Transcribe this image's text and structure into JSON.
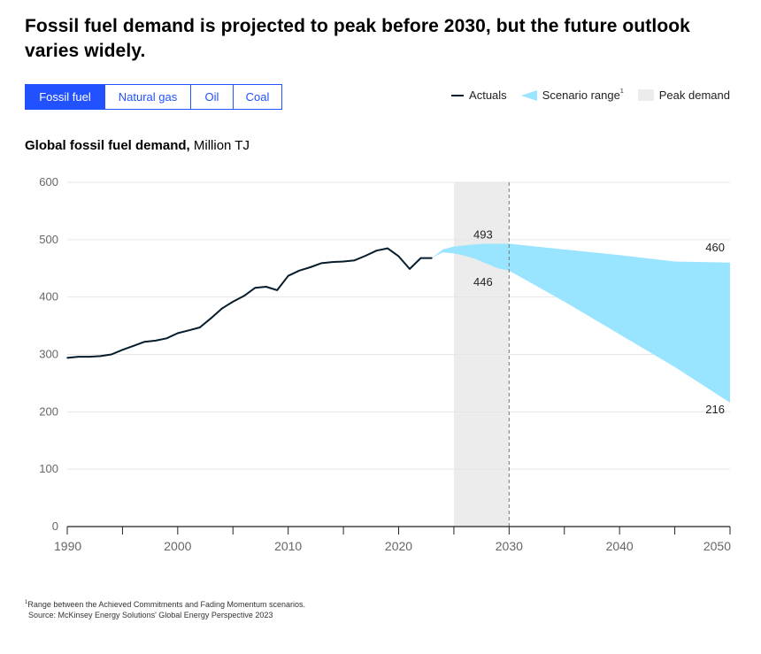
{
  "title": "Fossil fuel demand is projected to peak before 2030, but the future outlook varies widely.",
  "tabs": [
    {
      "label": "Fossil fuel",
      "active": true
    },
    {
      "label": "Natural gas",
      "active": false
    },
    {
      "label": "Oil",
      "active": false
    },
    {
      "label": "Coal",
      "active": false
    }
  ],
  "legend": {
    "actuals": "Actuals",
    "scenario": "Scenario range",
    "scenario_sup": "1",
    "peak": "Peak demand"
  },
  "chart_heading": {
    "bold": "Global fossil fuel demand,",
    "unit": " Million TJ"
  },
  "colors": {
    "actuals": "#051c2c",
    "scenario": "#99e4ff",
    "peak_band": "#ececec",
    "tab_accent": "#2251ff",
    "grid": "#e6e6e6",
    "axis_text": "#666666"
  },
  "chart_data": {
    "type": "line",
    "xlim": [
      1990,
      2050
    ],
    "ylim": [
      0,
      600
    ],
    "y_ticks": [
      0,
      100,
      200,
      300,
      400,
      500,
      600
    ],
    "x_ticks": [
      1990,
      2000,
      2010,
      2020,
      2030,
      2040,
      2050
    ],
    "grid": "horizontal",
    "actuals": {
      "name": "Actuals",
      "x": [
        1990,
        1991,
        1992,
        1993,
        1994,
        1995,
        1996,
        1997,
        1998,
        1999,
        2000,
        2001,
        2002,
        2003,
        2004,
        2005,
        2006,
        2007,
        2008,
        2009,
        2010,
        2011,
        2012,
        2013,
        2014,
        2015,
        2016,
        2017,
        2018,
        2019,
        2020,
        2021,
        2022,
        2023
      ],
      "y": [
        294,
        296,
        296,
        297,
        300,
        308,
        315,
        322,
        324,
        328,
        337,
        342,
        347,
        363,
        380,
        392,
        402,
        416,
        418,
        412,
        437,
        446,
        452,
        459,
        461,
        462,
        464,
        472,
        481,
        485,
        471,
        449,
        468,
        468
      ]
    },
    "scenario_range": {
      "name": "Scenario range",
      "x": [
        2023,
        2024,
        2025,
        2026,
        2027,
        2028,
        2029,
        2030,
        2035,
        2040,
        2045,
        2050
      ],
      "upper": [
        468,
        483,
        488,
        490,
        492,
        493,
        493,
        493,
        483,
        473,
        462,
        460
      ],
      "lower": [
        468,
        478,
        476,
        472,
        466,
        458,
        450,
        446,
        392,
        335,
        278,
        216
      ]
    },
    "peak_demand_band": {
      "name": "Peak demand",
      "x_start": 2025,
      "x_end": 2030
    },
    "reference_line_x": 2030,
    "annotations": [
      {
        "text": "493",
        "x": 2028.6,
        "y": 493
      },
      {
        "text": "446",
        "x": 2028.6,
        "y": 446
      },
      {
        "text": "460",
        "x": 2050,
        "y": 460
      },
      {
        "text": "216",
        "x": 2050,
        "y": 216
      }
    ]
  },
  "footnote": {
    "note": "Range between the Achieved Commitments and Fading Momentum scenarios.",
    "note_marker": "1",
    "source": "Source: McKinsey Energy Solutions' Global Energy Perspective 2023"
  }
}
